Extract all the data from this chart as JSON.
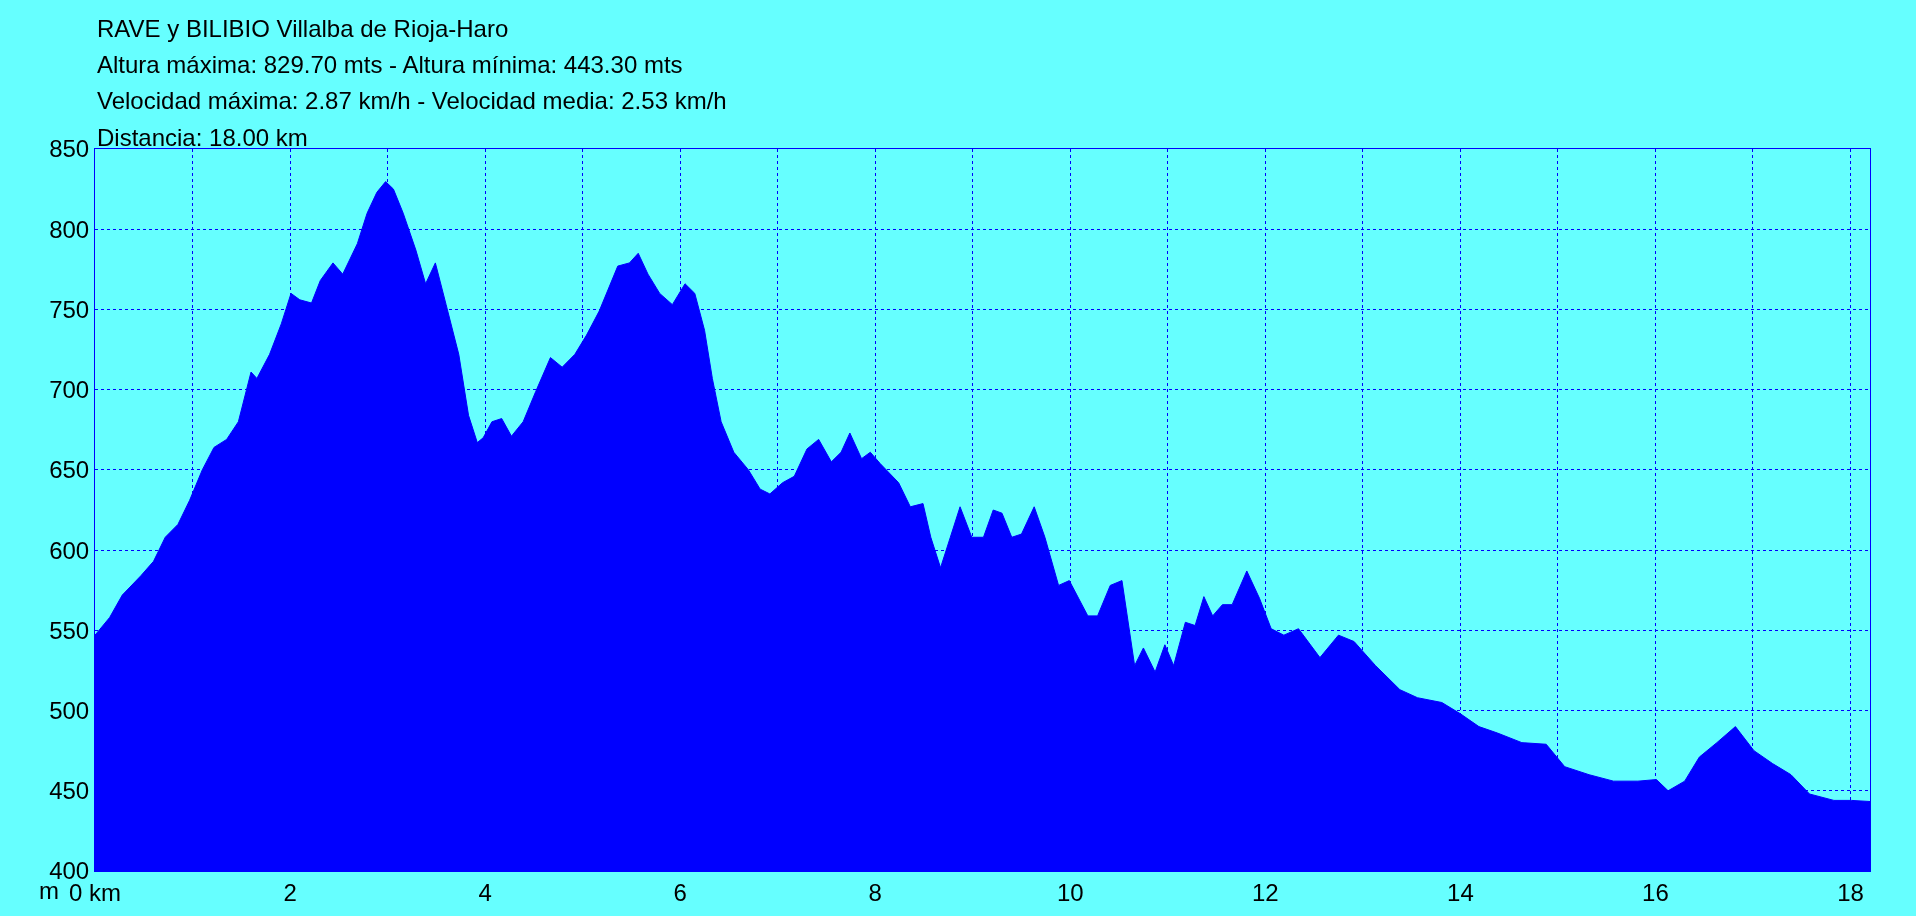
{
  "chart_data": {
    "type": "area",
    "title": "RAVE y BILIBIO Villalba de Rioja-Haro",
    "annotations": [
      "Altura máxima: 829.70 mts - Altura mínima: 443.30 mts",
      "Velocidad máxima: 2.87 km/h - Velocidad media: 2.53 km/h",
      "Distancia: 18.00 km"
    ],
    "ylabel": "m",
    "x": [
      0,
      0.15,
      0.28,
      0.47,
      0.6,
      0.72,
      0.85,
      0.97,
      1.1,
      1.22,
      1.35,
      1.47,
      1.6,
      1.66,
      1.79,
      1.91,
      2.01,
      2.1,
      2.22,
      2.31,
      2.44,
      2.54,
      2.69,
      2.79,
      2.89,
      2.98,
      3.06,
      3.16,
      3.29,
      3.39,
      3.49,
      3.6,
      3.73,
      3.83,
      3.92,
      3.98,
      4.07,
      4.17,
      4.27,
      4.39,
      4.52,
      4.67,
      4.79,
      4.92,
      5.04,
      5.17,
      5.36,
      5.48,
      5.57,
      5.67,
      5.79,
      5.92,
      6.05,
      6.15,
      6.25,
      6.33,
      6.42,
      6.55,
      6.7,
      6.82,
      6.92,
      7.05,
      7.17,
      7.3,
      7.42,
      7.55,
      7.65,
      7.74,
      7.86,
      7.95,
      8.05,
      8.24,
      8.36,
      8.49,
      8.57,
      8.67,
      8.77,
      8.87,
      8.99,
      9.11,
      9.21,
      9.3,
      9.4,
      9.5,
      9.63,
      9.74,
      9.88,
      9.99,
      10.18,
      10.28,
      10.41,
      10.53,
      10.66,
      10.75,
      10.87,
      10.97,
      11.06,
      11.18,
      11.28,
      11.37,
      11.46,
      11.56,
      11.66,
      11.81,
      11.94,
      12.06,
      12.19,
      12.34,
      12.56,
      12.75,
      12.91,
      13.13,
      13.38,
      13.56,
      13.81,
      14.0,
      14.19,
      14.38,
      14.63,
      14.88,
      15.07,
      15.32,
      15.57,
      15.82,
      16.01,
      16.13,
      16.3,
      16.45,
      16.63,
      16.82,
      17.01,
      17.2,
      17.39,
      17.58,
      17.83,
      18.01,
      18.2
    ],
    "series": [
      {
        "color": "#0000ff",
        "values": [
          547,
          558,
          572,
          584,
          593,
          608,
          616,
          631,
          650,
          664,
          669,
          680,
          711,
          707,
          722,
          741,
          760,
          756,
          754,
          768,
          779,
          772,
          791,
          810,
          823,
          829.7,
          825,
          810,
          787,
          766,
          779,
          753,
          722,
          684,
          667,
          670,
          680,
          682,
          671,
          680,
          699,
          720,
          714,
          722,
          734,
          749,
          777,
          779,
          785,
          772,
          760,
          753,
          766,
          760,
          737,
          707,
          680,
          661,
          650,
          638,
          635,
          642,
          646,
          663,
          669,
          655,
          661,
          673,
          657,
          661,
          654,
          642,
          627,
          629,
          608,
          589,
          608,
          627,
          608,
          608,
          625,
          623,
          608,
          610,
          627,
          608,
          578,
          581,
          559,
          559,
          578,
          581,
          528,
          539,
          524,
          541,
          528,
          555,
          553,
          571,
          559,
          566,
          566,
          587,
          570,
          551,
          547,
          551,
          533,
          547,
          543,
          528,
          513,
          508,
          505,
          498,
          490,
          486,
          480,
          479,
          465,
          460,
          456,
          456,
          457,
          450,
          456,
          471,
          480,
          490,
          475,
          467,
          460,
          448,
          444,
          444,
          443.3
        ]
      }
    ],
    "xlim": [
      0,
      18.2
    ],
    "ylim": [
      400,
      850
    ],
    "xticks": [
      {
        "value": 0,
        "label": "0 km"
      },
      {
        "value": 1,
        "label": null
      },
      2,
      {
        "value": 3,
        "label": null
      },
      4,
      {
        "value": 5,
        "label": null
      },
      6,
      {
        "value": 7,
        "label": null
      },
      8,
      {
        "value": 9,
        "label": null
      },
      10,
      {
        "value": 11,
        "label": null
      },
      12,
      {
        "value": 13,
        "label": null
      },
      14,
      {
        "value": 15,
        "label": null
      },
      16,
      {
        "value": 17,
        "label": null
      },
      18
    ],
    "yticks": [
      400,
      450,
      500,
      550,
      600,
      650,
      700,
      750,
      800,
      850
    ],
    "grid": true
  }
}
